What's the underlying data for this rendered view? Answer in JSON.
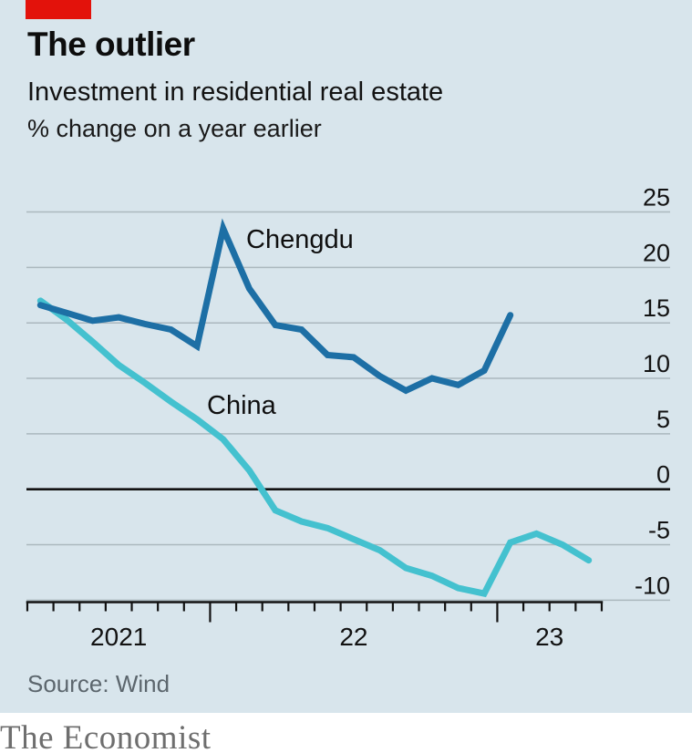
{
  "brand": {
    "tab_color": "#e3120b",
    "wordmark": "The Economist"
  },
  "header": {
    "title": "The outlier",
    "subtitle": "Investment in residential real estate",
    "unit": "% change on a year earlier"
  },
  "footer": {
    "source": "Source: Wind"
  },
  "chart_data": {
    "type": "line",
    "title": "The outlier",
    "subtitle": "Investment in residential real estate",
    "ylabel": "% change on a year earlier",
    "grid": "horizontal-only",
    "legend_position": "inline-labels-on-chart",
    "colors": {
      "background": "#d8e5ec",
      "gridline": "#abb8be",
      "zero_line": "#121212",
      "axis": "#121212"
    },
    "y_axis": {
      "ticks": [
        25,
        20,
        15,
        10,
        5,
        0,
        -5,
        -10
      ],
      "range": [
        -11.6,
        26.3
      ]
    },
    "x_axis": {
      "tick_count": 23,
      "year_boundary_ticks": [
        7,
        18
      ],
      "labels": [
        {
          "text": "2021",
          "slot": 3.5
        },
        {
          "text": "22",
          "slot": 12.5
        },
        {
          "text": "23",
          "slot": 20
        }
      ]
    },
    "series": [
      {
        "name": "Chengdu",
        "color": "#1d6fa5",
        "start_slot": 0,
        "values": [
          16.6,
          15.9,
          15.2,
          15.5,
          14.9,
          14.4,
          12.9,
          23.5,
          18.1,
          14.8,
          14.4,
          12.1,
          11.9,
          10.2,
          8.9,
          10.0,
          9.4,
          10.7,
          15.7
        ]
      },
      {
        "name": "China",
        "color": "#44c1cf",
        "start_slot": 0,
        "values": [
          17.0,
          15.3,
          13.3,
          11.2,
          9.6,
          7.9,
          6.3,
          4.5,
          1.7,
          -1.9,
          -2.9,
          -3.5,
          -4.5,
          -5.5,
          -7.1,
          -7.8,
          -8.9,
          -9.4,
          -4.8,
          -4.0,
          -5.0,
          -6.4
        ]
      }
    ]
  }
}
